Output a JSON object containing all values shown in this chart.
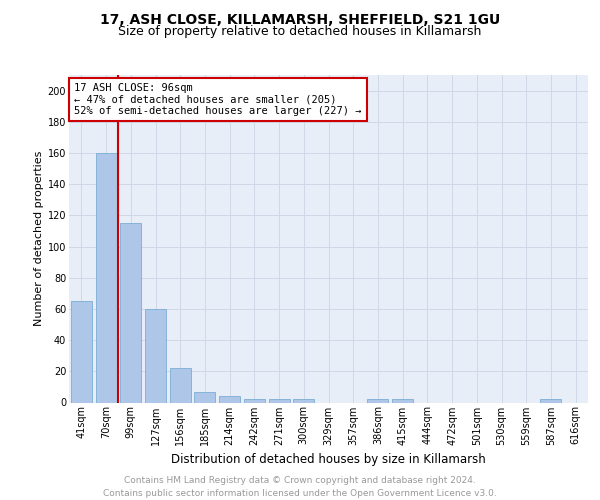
{
  "title1": "17, ASH CLOSE, KILLAMARSH, SHEFFIELD, S21 1GU",
  "title2": "Size of property relative to detached houses in Killamarsh",
  "xlabel": "Distribution of detached houses by size in Killamarsh",
  "ylabel": "Number of detached properties",
  "categories": [
    "41sqm",
    "70sqm",
    "99sqm",
    "127sqm",
    "156sqm",
    "185sqm",
    "214sqm",
    "242sqm",
    "271sqm",
    "300sqm",
    "329sqm",
    "357sqm",
    "386sqm",
    "415sqm",
    "444sqm",
    "472sqm",
    "501sqm",
    "530sqm",
    "559sqm",
    "587sqm",
    "616sqm"
  ],
  "values": [
    65,
    160,
    115,
    60,
    22,
    7,
    4,
    2,
    2,
    2,
    0,
    0,
    2,
    2,
    0,
    0,
    0,
    0,
    0,
    2,
    0
  ],
  "bar_color": "#aec6e8",
  "bar_edge_color": "#7aadd4",
  "vline_color": "#cc0000",
  "annotation_text": "17 ASH CLOSE: 96sqm\n← 47% of detached houses are smaller (205)\n52% of semi-detached houses are larger (227) →",
  "annotation_box_color": "#cc0000",
  "ylim": [
    0,
    210
  ],
  "yticks": [
    0,
    20,
    40,
    60,
    80,
    100,
    120,
    140,
    160,
    180,
    200
  ],
  "grid_color": "#d0d8e8",
  "background_color": "#e8eef8",
  "footer": "Contains HM Land Registry data © Crown copyright and database right 2024.\nContains public sector information licensed under the Open Government Licence v3.0.",
  "title1_fontsize": 10,
  "title2_fontsize": 9,
  "xlabel_fontsize": 8.5,
  "ylabel_fontsize": 8,
  "tick_fontsize": 7,
  "footer_fontsize": 6.5,
  "annotation_fontsize": 7.5
}
